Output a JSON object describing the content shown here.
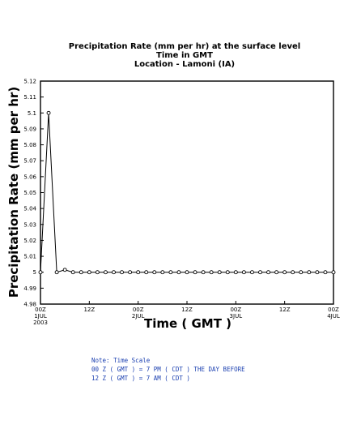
{
  "chart_data": {
    "type": "line",
    "title": "Precipitation Rate (mm per hr) at the surface level",
    "subtitle": [
      "Time in GMT",
      "Location - Lamoni (IA)"
    ],
    "xlabel": "Time ( GMT )",
    "ylabel": "Precipitation Rate (mm per hr)",
    "ylim": [
      4.98,
      5.12
    ],
    "xlim_hours": [
      0,
      72
    ],
    "y_ticks": [
      "4.98",
      "4.99",
      "5",
      "5.01",
      "5.02",
      "5.03",
      "5.04",
      "5.05",
      "5.06",
      "5.07",
      "5.08",
      "5.09",
      "5.1",
      "5.11",
      "5.12"
    ],
    "x_ticks": [
      {
        "hour": 0,
        "lines": [
          "00Z",
          "1JUL",
          "2003"
        ]
      },
      {
        "hour": 12,
        "lines": [
          "12Z"
        ]
      },
      {
        "hour": 24,
        "lines": [
          "00Z",
          "2JUL"
        ]
      },
      {
        "hour": 36,
        "lines": [
          "12Z"
        ]
      },
      {
        "hour": 48,
        "lines": [
          "00Z",
          "3JUL"
        ]
      },
      {
        "hour": 60,
        "lines": [
          "12Z"
        ]
      },
      {
        "hour": 72,
        "lines": [
          "00Z",
          "4JUL"
        ]
      }
    ],
    "series": [
      {
        "x_hours": [
          0,
          2,
          4,
          6,
          8,
          10,
          12,
          14,
          16,
          18,
          20,
          22,
          24,
          26,
          28,
          30,
          32,
          34,
          36,
          38,
          40,
          42,
          44,
          46,
          48,
          50,
          52,
          54,
          56,
          58,
          60,
          62,
          64,
          66,
          68,
          70,
          72
        ],
        "values": [
          5.0,
          5.1,
          5.0,
          5.0015,
          5.0,
          5.0,
          5.0,
          5.0,
          5.0,
          5.0,
          5.0,
          5.0,
          5.0,
          5.0,
          5.0,
          5.0,
          5.0,
          5.0,
          5.0,
          5.0,
          5.0,
          5.0,
          5.0,
          5.0,
          5.0,
          5.0,
          5.0,
          5.0,
          5.0,
          5.0,
          5.0,
          5.0,
          5.0,
          5.0,
          5.0,
          5.0,
          5.0
        ]
      }
    ],
    "grid": false
  },
  "note": {
    "lines": [
      "Note: Time Scale",
      "00 Z ( GMT ) = 7 PM ( CDT ) THE DAY BEFORE",
      "12 Z ( GMT ) = 7 AM ( CDT )"
    ],
    "color": "#1a3fb0"
  }
}
